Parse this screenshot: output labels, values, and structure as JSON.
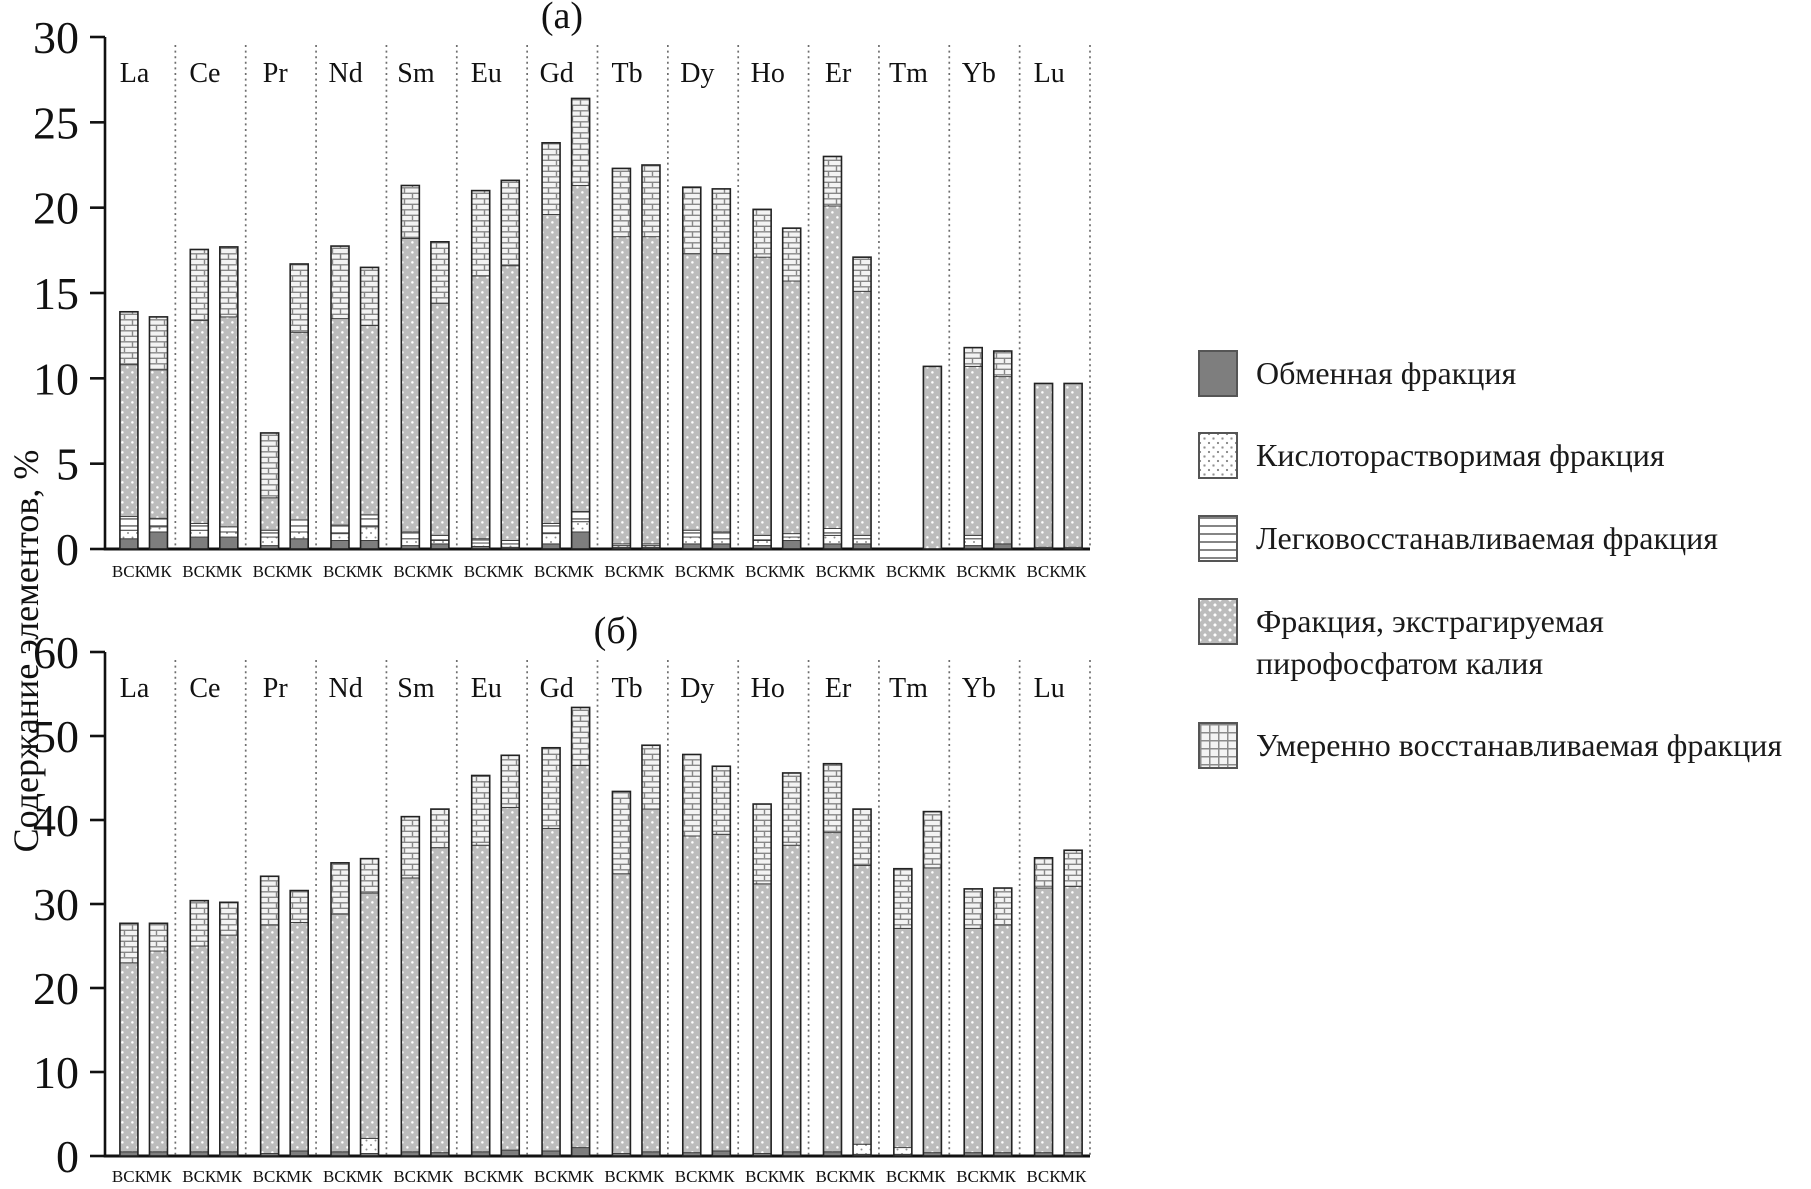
{
  "figure": {
    "y_axis_label": "Содержание элементов, %",
    "panel_a_title": "(а)",
    "panel_b_title": "(б)"
  },
  "legend": {
    "position": "right",
    "items": [
      {
        "label": "Обменная фракция",
        "pattern": "solid-gray",
        "color": "#7e7e7e"
      },
      {
        "label": "Кислоторастворимая фракция",
        "pattern": "white-dots",
        "color": "#ffffff"
      },
      {
        "label": "Легковосстанавливаемая фракция",
        "pattern": "horizontal-lines",
        "color": "#858585"
      },
      {
        "label": "Фракция, экстрагируемая пирофосфатом калия",
        "pattern": "gray-white-dots",
        "color": "#bcbcbc"
      },
      {
        "label": "Умеренно восстанавливаемая фракция",
        "pattern": "brick",
        "color": "#f3f3f3"
      }
    ]
  },
  "chart_data": [
    {
      "type": "bar",
      "stacked": true,
      "title": "(а)",
      "ylabel": "Содержание элементов, %",
      "ylim": [
        0,
        30
      ],
      "ytick_interval": 5,
      "grid": false,
      "categories": [
        "La",
        "Ce",
        "Pr",
        "Nd",
        "Sm",
        "Eu",
        "Gd",
        "Tb",
        "Dy",
        "Ho",
        "Er",
        "Tm",
        "Yb",
        "Lu"
      ],
      "subcategories": [
        "ВСК",
        "МК"
      ],
      "series": [
        {
          "name": "Обменная фракция",
          "pattern": "solid-gray",
          "values": {
            "ВСК": [
              0.6,
              0.7,
              0.2,
              0.5,
              0.2,
              0.15,
              0.3,
              0.1,
              0.3,
              0.2,
              0.3,
              0,
              0.2,
              0.1
            ],
            "МК": [
              1.0,
              0.7,
              0.6,
              0.5,
              0.3,
              0.1,
              1.0,
              0.1,
              0.3,
              0.5,
              0.3,
              0,
              0.3,
              0.1
            ]
          }
        },
        {
          "name": "Кислоторастворимая фракция",
          "pattern": "white-dots",
          "values": {
            "ВСК": [
              0.5,
              0.4,
              0.5,
              0.4,
              0.4,
              0.2,
              0.6,
              0.1,
              0.4,
              0.3,
              0.5,
              0,
              0.4,
              0
            ],
            "МК": [
              0.3,
              0.3,
              0.4,
              0.8,
              0.2,
              0.2,
              0.6,
              0.1,
              0.3,
              0.2,
              0.3,
              0,
              0,
              0
            ]
          }
        },
        {
          "name": "Легковосстанавливаемая фракция",
          "pattern": "horizontal-lines",
          "values": {
            "ВСК": [
              0.8,
              0.4,
              0.4,
              0.5,
              0.4,
              0.25,
              0.6,
              0.1,
              0.4,
              0.3,
              0.4,
              0,
              0.2,
              0
            ],
            "МК": [
              0.5,
              0.3,
              0.7,
              0.7,
              0.3,
              0.2,
              0.6,
              0.1,
              0.4,
              0.2,
              0.2,
              0,
              0,
              0
            ]
          }
        },
        {
          "name": "Фракция, экстрагируемая пирофосфатом калия",
          "pattern": "gray-white-dots",
          "values": {
            "ВСК": [
              8.9,
              11.9,
              1.9,
              12.1,
              17.2,
              15.4,
              18.1,
              18.0,
              16.2,
              16.3,
              18.9,
              0,
              9.9,
              9.6
            ],
            "МК": [
              8.7,
              12.3,
              11.0,
              11.1,
              13.6,
              16.1,
              19.1,
              18.0,
              16.3,
              14.8,
              14.3,
              10.7,
              9.8,
              9.6
            ]
          }
        },
        {
          "name": "Умеренно восстанавливаемая фракция",
          "pattern": "brick",
          "values": {
            "ВСК": [
              3.1,
              4.15,
              3.8,
              4.25,
              3.1,
              5.0,
              4.2,
              4.0,
              3.9,
              2.8,
              2.9,
              0,
              1.1,
              0
            ],
            "МК": [
              3.1,
              4.1,
              4.0,
              3.4,
              3.6,
              5.0,
              5.1,
              4.2,
              3.8,
              3.1,
              2.0,
              0,
              1.5,
              0
            ]
          }
        }
      ]
    },
    {
      "type": "bar",
      "stacked": true,
      "title": "(б)",
      "ylabel": "Содержание элементов, %",
      "ylim": [
        0,
        60
      ],
      "ytick_interval": 10,
      "grid": false,
      "categories": [
        "La",
        "Ce",
        "Pr",
        "Nd",
        "Sm",
        "Eu",
        "Gd",
        "Tb",
        "Dy",
        "Ho",
        "Er",
        "Tm",
        "Yb",
        "Lu"
      ],
      "subcategories": [
        "ВСК",
        "МК"
      ],
      "series": [
        {
          "name": "Обменная фракция",
          "pattern": "solid-gray",
          "values": {
            "ВСК": [
              0.5,
              0.5,
              0.3,
              0.5,
              0.5,
              0.5,
              0.6,
              0.3,
              0.4,
              0.3,
              0.5,
              0.2,
              0.4,
              0.4
            ],
            "МК": [
              0.5,
              0.5,
              0.6,
              0.3,
              0.4,
              0.7,
              1.0,
              0.5,
              0.6,
              0.5,
              0.2,
              0.4,
              0.4,
              0.4
            ]
          }
        },
        {
          "name": "Кислоторастворимая фракция",
          "pattern": "white-dots",
          "values": {
            "ВСК": [
              0,
              0,
              0,
              0,
              0,
              0,
              0,
              0,
              0,
              0,
              0,
              0.8,
              0,
              0
            ],
            "МК": [
              0,
              0,
              0,
              1.8,
              0,
              0,
              0,
              0,
              0,
              0,
              1.2,
              0,
              0,
              0
            ]
          }
        },
        {
          "name": "Легковосстанавливаемая фракция",
          "pattern": "horizontal-lines",
          "values": {
            "ВСК": [
              0,
              0,
              0,
              0,
              0,
              0,
              0,
              0,
              0,
              0,
              0,
              0,
              0,
              0
            ],
            "МК": [
              0,
              0,
              0,
              0,
              0,
              0,
              0,
              0,
              0,
              0,
              0,
              0,
              0,
              0
            ]
          }
        },
        {
          "name": "Фракция, экстрагируемая пирофосфатом калия",
          "pattern": "gray-white-dots",
          "values": {
            "ВСК": [
              22.5,
              24.5,
              27.2,
              28.3,
              32.6,
              36.5,
              38.4,
              33.3,
              37.7,
              32.1,
              38.0,
              26.1,
              26.7,
              31.5
            ],
            "МК": [
              23.9,
              25.8,
              27.2,
              29.2,
              36.3,
              40.8,
              45.5,
              40.8,
              37.7,
              36.5,
              33.2,
              33.9,
              27.1,
              31.7
            ]
          }
        },
        {
          "name": "Умеренно восстанавливаемая фракция",
          "pattern": "brick",
          "values": {
            "ВСК": [
              4.7,
              5.4,
              5.8,
              6.1,
              7.3,
              8.3,
              9.6,
              9.8,
              9.7,
              9.5,
              8.2,
              7.1,
              4.7,
              3.6
            ],
            "МК": [
              3.3,
              3.9,
              3.8,
              4.1,
              4.6,
              6.2,
              6.9,
              7.6,
              8.1,
              8.6,
              6.7,
              6.7,
              4.4,
              4.3
            ]
          }
        }
      ]
    }
  ]
}
